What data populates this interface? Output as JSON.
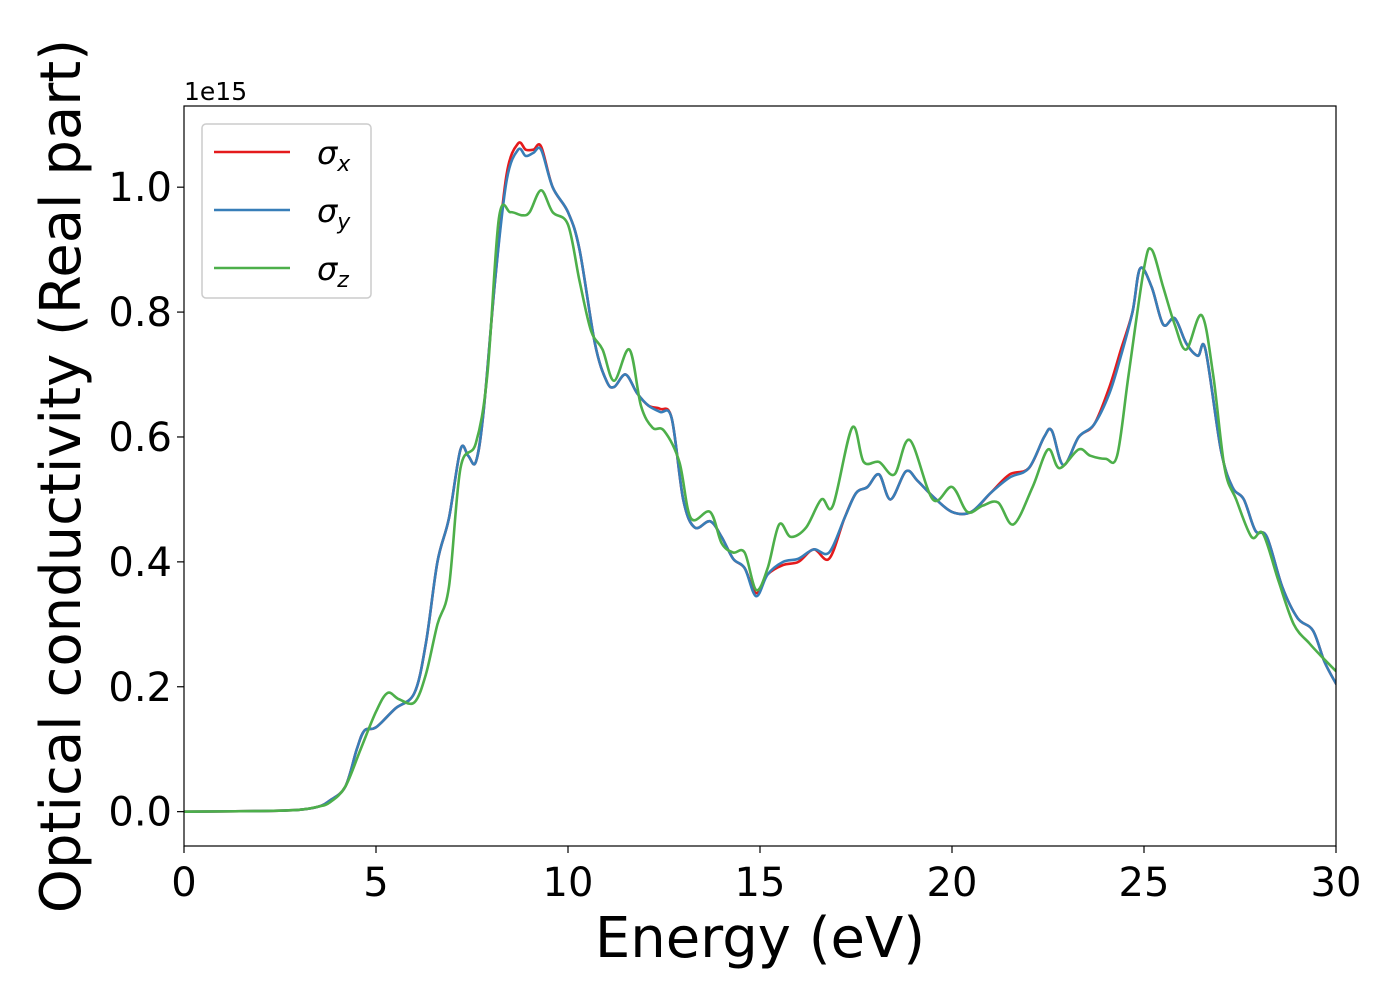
{
  "chart_data": {
    "type": "line",
    "title": "",
    "xlabel": "Energy (eV)",
    "ylabel": "Optical conductivity (Real part)",
    "y_offset_label": "1e15",
    "xlim": [
      0,
      30
    ],
    "ylim": [
      -0.055,
      1.13
    ],
    "xticks": [
      0,
      5,
      10,
      15,
      20,
      25,
      30
    ],
    "xtick_labels": [
      "0",
      "5",
      "10",
      "15",
      "20",
      "25",
      "30"
    ],
    "yticks": [
      0.0,
      0.2,
      0.4,
      0.6,
      0.8,
      1.0
    ],
    "ytick_labels": [
      "0.0",
      "0.2",
      "0.4",
      "0.6",
      "0.8",
      "1.0"
    ],
    "grid": false,
    "legend_position": "top-left",
    "series": [
      {
        "name": "σx",
        "sym": "σ",
        "sub": "x",
        "color": "#e41a1c",
        "points": [
          [
            0,
            0
          ],
          [
            2,
            0.001
          ],
          [
            3,
            0.003
          ],
          [
            3.5,
            0.008
          ],
          [
            3.8,
            0.018
          ],
          [
            4.2,
            0.04
          ],
          [
            4.5,
            0.1
          ],
          [
            4.7,
            0.13
          ],
          [
            5,
            0.135
          ],
          [
            5.5,
            0.165
          ],
          [
            6,
            0.19
          ],
          [
            6.3,
            0.27
          ],
          [
            6.6,
            0.4
          ],
          [
            6.9,
            0.47
          ],
          [
            7.2,
            0.58
          ],
          [
            7.4,
            0.57
          ],
          [
            7.6,
            0.56
          ],
          [
            7.8,
            0.64
          ],
          [
            8.1,
            0.85
          ],
          [
            8.4,
            1.02
          ],
          [
            8.7,
            1.07
          ],
          [
            8.9,
            1.06
          ],
          [
            9.1,
            1.06
          ],
          [
            9.3,
            1.065
          ],
          [
            9.6,
            1.0
          ],
          [
            10,
            0.96
          ],
          [
            10.3,
            0.9
          ],
          [
            10.7,
            0.75
          ],
          [
            11,
            0.69
          ],
          [
            11.2,
            0.68
          ],
          [
            11.5,
            0.7
          ],
          [
            11.8,
            0.67
          ],
          [
            12.1,
            0.65
          ],
          [
            12.4,
            0.645
          ],
          [
            12.7,
            0.63
          ],
          [
            13.0,
            0.5
          ],
          [
            13.3,
            0.455
          ],
          [
            13.7,
            0.465
          ],
          [
            14.0,
            0.44
          ],
          [
            14.3,
            0.405
          ],
          [
            14.6,
            0.39
          ],
          [
            14.9,
            0.35
          ],
          [
            15.2,
            0.38
          ],
          [
            15.6,
            0.395
          ],
          [
            16.0,
            0.4
          ],
          [
            16.4,
            0.42
          ],
          [
            16.8,
            0.405
          ],
          [
            17.2,
            0.47
          ],
          [
            17.5,
            0.51
          ],
          [
            17.8,
            0.52
          ],
          [
            18.1,
            0.54
          ],
          [
            18.4,
            0.5
          ],
          [
            18.8,
            0.545
          ],
          [
            19.1,
            0.53
          ],
          [
            19.5,
            0.505
          ],
          [
            20,
            0.48
          ],
          [
            20.5,
            0.48
          ],
          [
            21,
            0.51
          ],
          [
            21.5,
            0.54
          ],
          [
            22,
            0.55
          ],
          [
            22.4,
            0.6
          ],
          [
            22.6,
            0.61
          ],
          [
            22.9,
            0.555
          ],
          [
            23.3,
            0.6
          ],
          [
            23.7,
            0.62
          ],
          [
            24.1,
            0.68
          ],
          [
            24.4,
            0.74
          ],
          [
            24.7,
            0.8
          ],
          [
            24.9,
            0.87
          ],
          [
            25.2,
            0.84
          ],
          [
            25.5,
            0.78
          ],
          [
            25.8,
            0.79
          ],
          [
            26.1,
            0.75
          ],
          [
            26.4,
            0.73
          ],
          [
            26.6,
            0.74
          ],
          [
            27.0,
            0.58
          ],
          [
            27.3,
            0.52
          ],
          [
            27.6,
            0.5
          ],
          [
            27.9,
            0.45
          ],
          [
            28.2,
            0.44
          ],
          [
            28.6,
            0.36
          ],
          [
            29.0,
            0.31
          ],
          [
            29.4,
            0.29
          ],
          [
            29.7,
            0.24
          ],
          [
            30,
            0.205
          ]
        ]
      },
      {
        "name": "σy",
        "sym": "σ",
        "sub": "y",
        "color": "#377eb8",
        "points": [
          [
            0,
            0
          ],
          [
            2,
            0.001
          ],
          [
            3,
            0.003
          ],
          [
            3.5,
            0.008
          ],
          [
            3.8,
            0.018
          ],
          [
            4.2,
            0.04
          ],
          [
            4.5,
            0.1
          ],
          [
            4.7,
            0.13
          ],
          [
            5,
            0.135
          ],
          [
            5.5,
            0.165
          ],
          [
            6,
            0.19
          ],
          [
            6.3,
            0.27
          ],
          [
            6.6,
            0.4
          ],
          [
            6.9,
            0.47
          ],
          [
            7.2,
            0.58
          ],
          [
            7.4,
            0.57
          ],
          [
            7.6,
            0.56
          ],
          [
            7.8,
            0.64
          ],
          [
            8.1,
            0.85
          ],
          [
            8.4,
            1.01
          ],
          [
            8.7,
            1.06
          ],
          [
            8.9,
            1.05
          ],
          [
            9.1,
            1.055
          ],
          [
            9.3,
            1.06
          ],
          [
            9.6,
            1.0
          ],
          [
            10,
            0.96
          ],
          [
            10.3,
            0.9
          ],
          [
            10.7,
            0.75
          ],
          [
            11,
            0.69
          ],
          [
            11.2,
            0.68
          ],
          [
            11.5,
            0.7
          ],
          [
            11.8,
            0.67
          ],
          [
            12.1,
            0.65
          ],
          [
            12.4,
            0.64
          ],
          [
            12.7,
            0.63
          ],
          [
            13.0,
            0.5
          ],
          [
            13.3,
            0.455
          ],
          [
            13.7,
            0.465
          ],
          [
            14.0,
            0.44
          ],
          [
            14.3,
            0.405
          ],
          [
            14.6,
            0.39
          ],
          [
            14.9,
            0.345
          ],
          [
            15.2,
            0.38
          ],
          [
            15.6,
            0.4
          ],
          [
            16.0,
            0.405
          ],
          [
            16.4,
            0.42
          ],
          [
            16.8,
            0.415
          ],
          [
            17.2,
            0.47
          ],
          [
            17.5,
            0.51
          ],
          [
            17.8,
            0.52
          ],
          [
            18.1,
            0.54
          ],
          [
            18.4,
            0.5
          ],
          [
            18.8,
            0.545
          ],
          [
            19.1,
            0.53
          ],
          [
            19.5,
            0.505
          ],
          [
            20,
            0.48
          ],
          [
            20.5,
            0.48
          ],
          [
            21,
            0.51
          ],
          [
            21.5,
            0.535
          ],
          [
            22,
            0.55
          ],
          [
            22.4,
            0.6
          ],
          [
            22.6,
            0.61
          ],
          [
            22.9,
            0.555
          ],
          [
            23.3,
            0.6
          ],
          [
            23.7,
            0.62
          ],
          [
            24.1,
            0.67
          ],
          [
            24.4,
            0.73
          ],
          [
            24.7,
            0.8
          ],
          [
            24.9,
            0.87
          ],
          [
            25.2,
            0.84
          ],
          [
            25.5,
            0.78
          ],
          [
            25.8,
            0.79
          ],
          [
            26.1,
            0.75
          ],
          [
            26.4,
            0.73
          ],
          [
            26.6,
            0.74
          ],
          [
            27.0,
            0.58
          ],
          [
            27.3,
            0.52
          ],
          [
            27.6,
            0.5
          ],
          [
            27.9,
            0.45
          ],
          [
            28.2,
            0.44
          ],
          [
            28.6,
            0.36
          ],
          [
            29.0,
            0.31
          ],
          [
            29.4,
            0.29
          ],
          [
            29.7,
            0.24
          ],
          [
            30,
            0.205
          ]
        ]
      },
      {
        "name": "σz",
        "sym": "σ",
        "sub": "z",
        "color": "#4daf4a",
        "points": [
          [
            0,
            0
          ],
          [
            2,
            0.001
          ],
          [
            3,
            0.003
          ],
          [
            3.5,
            0.008
          ],
          [
            3.8,
            0.015
          ],
          [
            4.2,
            0.04
          ],
          [
            4.6,
            0.1
          ],
          [
            5.0,
            0.16
          ],
          [
            5.3,
            0.19
          ],
          [
            5.6,
            0.18
          ],
          [
            6.0,
            0.175
          ],
          [
            6.3,
            0.22
          ],
          [
            6.6,
            0.3
          ],
          [
            6.9,
            0.36
          ],
          [
            7.2,
            0.55
          ],
          [
            7.6,
            0.59
          ],
          [
            7.9,
            0.7
          ],
          [
            8.2,
            0.95
          ],
          [
            8.5,
            0.96
          ],
          [
            8.8,
            0.955
          ],
          [
            9.0,
            0.96
          ],
          [
            9.3,
            0.995
          ],
          [
            9.6,
            0.96
          ],
          [
            10.0,
            0.94
          ],
          [
            10.3,
            0.85
          ],
          [
            10.6,
            0.77
          ],
          [
            10.9,
            0.74
          ],
          [
            11.2,
            0.69
          ],
          [
            11.6,
            0.74
          ],
          [
            11.9,
            0.65
          ],
          [
            12.2,
            0.615
          ],
          [
            12.5,
            0.61
          ],
          [
            12.9,
            0.56
          ],
          [
            13.2,
            0.47
          ],
          [
            13.7,
            0.48
          ],
          [
            14.0,
            0.43
          ],
          [
            14.3,
            0.415
          ],
          [
            14.6,
            0.415
          ],
          [
            14.9,
            0.355
          ],
          [
            15.2,
            0.39
          ],
          [
            15.5,
            0.46
          ],
          [
            15.8,
            0.44
          ],
          [
            16.2,
            0.455
          ],
          [
            16.6,
            0.5
          ],
          [
            16.9,
            0.49
          ],
          [
            17.4,
            0.615
          ],
          [
            17.7,
            0.56
          ],
          [
            18.1,
            0.56
          ],
          [
            18.5,
            0.54
          ],
          [
            18.9,
            0.595
          ],
          [
            19.5,
            0.5
          ],
          [
            20.0,
            0.52
          ],
          [
            20.4,
            0.48
          ],
          [
            20.8,
            0.49
          ],
          [
            21.2,
            0.495
          ],
          [
            21.6,
            0.46
          ],
          [
            22.1,
            0.52
          ],
          [
            22.5,
            0.58
          ],
          [
            22.8,
            0.55
          ],
          [
            23.3,
            0.58
          ],
          [
            23.6,
            0.57
          ],
          [
            24.0,
            0.565
          ],
          [
            24.3,
            0.57
          ],
          [
            24.6,
            0.7
          ],
          [
            25.0,
            0.87
          ],
          [
            25.2,
            0.9
          ],
          [
            25.5,
            0.84
          ],
          [
            25.8,
            0.78
          ],
          [
            26.1,
            0.74
          ],
          [
            26.5,
            0.795
          ],
          [
            26.8,
            0.7
          ],
          [
            27.1,
            0.55
          ],
          [
            27.4,
            0.5
          ],
          [
            27.8,
            0.44
          ],
          [
            28.1,
            0.445
          ],
          [
            28.5,
            0.37
          ],
          [
            28.9,
            0.3
          ],
          [
            29.3,
            0.27
          ],
          [
            29.6,
            0.25
          ],
          [
            30,
            0.225
          ]
        ]
      }
    ]
  }
}
